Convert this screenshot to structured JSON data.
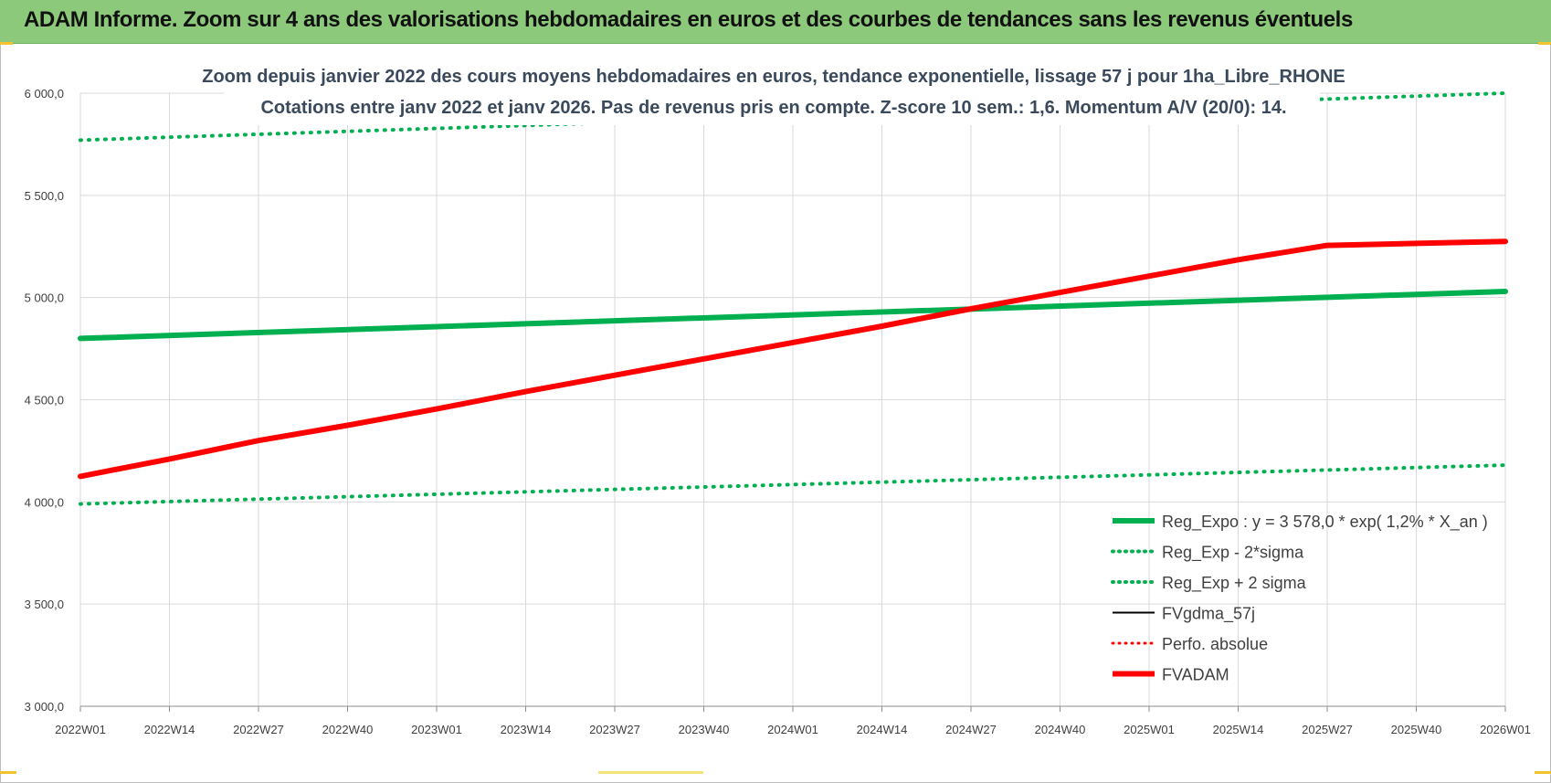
{
  "header": {
    "title": "ADAM Informe. Zoom sur 4 ans des valorisations hebdomadaires en euros et des courbes de tendances sans les revenus éventuels"
  },
  "chart_data": {
    "type": "line",
    "title_line1": "Zoom depuis janvier 2022 des cours moyens hebdomadaires en euros, tendance exponentielle, lissage 57 j pour 1ha_Libre_RHONE",
    "title_line2": "Cotations entre janv 2022 et janv 2026. Pas de revenus pris en compte. Z-score 10 sem.: 1,6. Momentum A/V (20/0): 14.",
    "x_tick_labels": [
      "2022W01",
      "2022W14",
      "2022W27",
      "2022W40",
      "2023W01",
      "2023W14",
      "2023W27",
      "2023W40",
      "2024W01",
      "2024W14",
      "2024W27",
      "2024W40",
      "2025W01",
      "2025W14",
      "2025W27",
      "2025W40",
      "2026W01"
    ],
    "y_tick_labels": [
      "3 000,0",
      "3 500,0",
      "4 000,0",
      "4 500,0",
      "5 000,0",
      "5 500,0",
      "6 000,0"
    ],
    "ylim": [
      3000,
      6000
    ],
    "grid": true,
    "legend_position": "bottom-right",
    "series": [
      {
        "name": "Reg_Expo : y = 3 578,0 * exp( 1,2% *  X_an )",
        "color": "#00b050",
        "style": "solid",
        "width": 6,
        "points": [
          [
            0,
            4800
          ],
          [
            16,
            5030
          ]
        ]
      },
      {
        "name": "Reg_Exp - 2*sigma",
        "color": "#00b050",
        "style": "dotted",
        "width": 4,
        "points": [
          [
            0,
            3990
          ],
          [
            16,
            4180
          ]
        ]
      },
      {
        "name": "Reg_Exp + 2 sigma",
        "color": "#00b050",
        "style": "dotted",
        "width": 4,
        "points": [
          [
            0,
            5770
          ],
          [
            16,
            6000
          ]
        ]
      },
      {
        "name": "FVgdma_57j",
        "color": "#000000",
        "style": "solid",
        "width": 2,
        "points": [
          [
            0,
            4130
          ],
          [
            4,
            4460
          ],
          [
            8,
            4780
          ],
          [
            10,
            4940
          ],
          [
            12,
            5110
          ],
          [
            13,
            5180
          ],
          [
            14,
            5250
          ],
          [
            15,
            5262
          ],
          [
            16,
            5275
          ]
        ]
      },
      {
        "name": "Perfo. absolue",
        "color": "#ff0000",
        "style": "dotted",
        "width": 3,
        "points": []
      },
      {
        "name": "FVADAM",
        "color": "#ff0000",
        "style": "solid",
        "width": 6,
        "points": [
          [
            0,
            4125
          ],
          [
            1,
            4210
          ],
          [
            2,
            4300
          ],
          [
            3,
            4375
          ],
          [
            4,
            4455
          ],
          [
            5,
            4540
          ],
          [
            6,
            4620
          ],
          [
            7,
            4700
          ],
          [
            8,
            4780
          ],
          [
            9,
            4860
          ],
          [
            10,
            4945
          ],
          [
            11,
            5025
          ],
          [
            12,
            5105
          ],
          [
            13,
            5185
          ],
          [
            14,
            5255
          ],
          [
            15,
            5265
          ],
          [
            16,
            5275
          ]
        ]
      }
    ]
  }
}
